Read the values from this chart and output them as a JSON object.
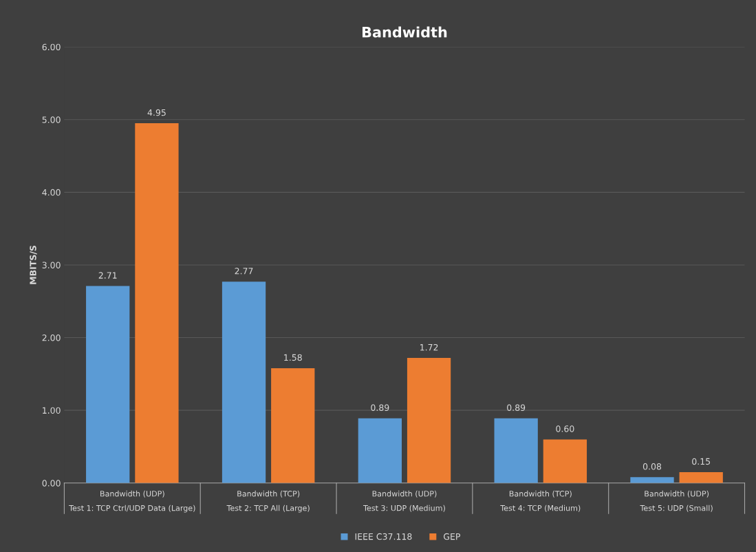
{
  "chart_data": {
    "type": "bar",
    "title": "Bandwidth",
    "ylabel": "MBITS/S",
    "categories": [
      "Bandwidth (UDP)\nTest 1: TCP Ctrl/UDP Data (Large)",
      "Bandwidth (TCP)\nTest 2: TCP All (Large)",
      "Bandwidth (UDP)\nTest 3: UDP (Medium)",
      "Bandwidth (TCP)\nTest 4: TCP (Medium)",
      "Bandwidth (UDP)\nTest 5: UDP (Small)"
    ],
    "series": [
      {
        "name": "IEEE C37.118",
        "color": "#5b9bd5",
        "values": [
          2.71,
          2.77,
          0.89,
          0.89,
          0.08
        ],
        "value_labels": [
          "2.71",
          "2.77",
          "0.89",
          "0.89",
          "0.08"
        ]
      },
      {
        "name": "GEP",
        "color": "#ed7d31",
        "values": [
          4.95,
          1.58,
          1.72,
          0.6,
          0.15
        ],
        "value_labels": [
          "4.95",
          "1.58",
          "1.72",
          "0.60",
          "0.15"
        ]
      }
    ],
    "ylim": [
      0,
      6
    ],
    "yticks": [
      {
        "value": 0,
        "label": "0.00"
      },
      {
        "value": 1,
        "label": "1.00"
      },
      {
        "value": 2,
        "label": "2.00"
      },
      {
        "value": 3,
        "label": "3.00"
      },
      {
        "value": 4,
        "label": "4.00"
      },
      {
        "value": 5,
        "label": "5.00"
      },
      {
        "value": 6,
        "label": "6.00"
      }
    ],
    "grid": "y",
    "legend": "bottom"
  }
}
